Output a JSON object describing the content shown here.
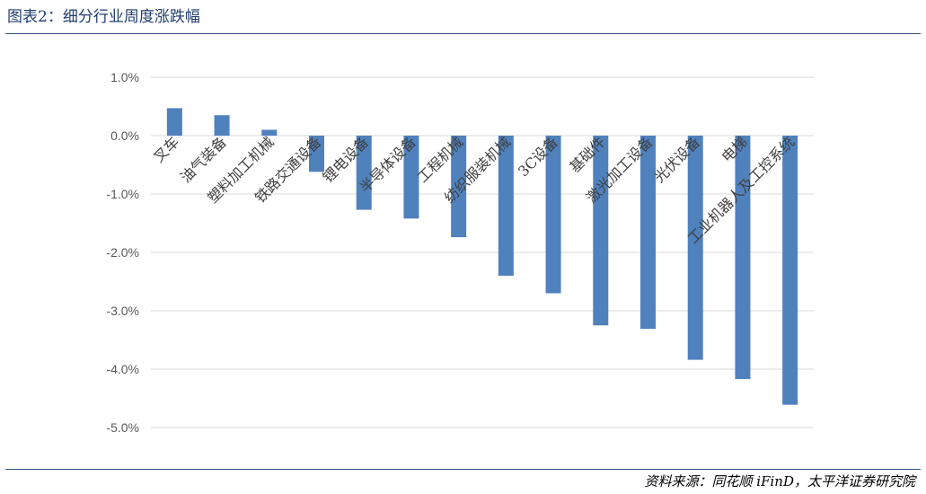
{
  "figure_title": "图表2：细分行业周度涨跌幅",
  "source_note": "资料来源：同花顺 iFinD，太平洋证券研究院",
  "colors": {
    "bar": "#4f81bd",
    "grid": "#d9d9d9",
    "rule": "#2f4f80",
    "title": "#1f3c6e"
  },
  "chart_data": {
    "type": "bar",
    "title": "",
    "xlabel": "",
    "ylabel": "",
    "ylim": [
      -5.0,
      1.0
    ],
    "y_tick_values": [
      1.0,
      0.0,
      -1.0,
      -2.0,
      -3.0,
      -4.0,
      -5.0
    ],
    "y_tick_labels": [
      "1.0%",
      "0.0%",
      "-1.0%",
      "-2.0%",
      "-3.0%",
      "-4.0%",
      "-5.0%"
    ],
    "grid": true,
    "legend": "none",
    "categories": [
      "叉车",
      "油气装备",
      "塑料加工机械",
      "铁路交通设备",
      "锂电设备",
      "半导体设备",
      "工程机械",
      "纺织服装机械",
      "3C设备",
      "基础件",
      "激光加工设备",
      "光伏设备",
      "电梯",
      "工业机器人及工控系统"
    ],
    "values": [
      0.47,
      0.35,
      0.1,
      -0.62,
      -1.27,
      -1.42,
      -1.74,
      -2.4,
      -2.7,
      -3.25,
      -3.31,
      -3.84,
      -4.17,
      -4.61
    ]
  }
}
